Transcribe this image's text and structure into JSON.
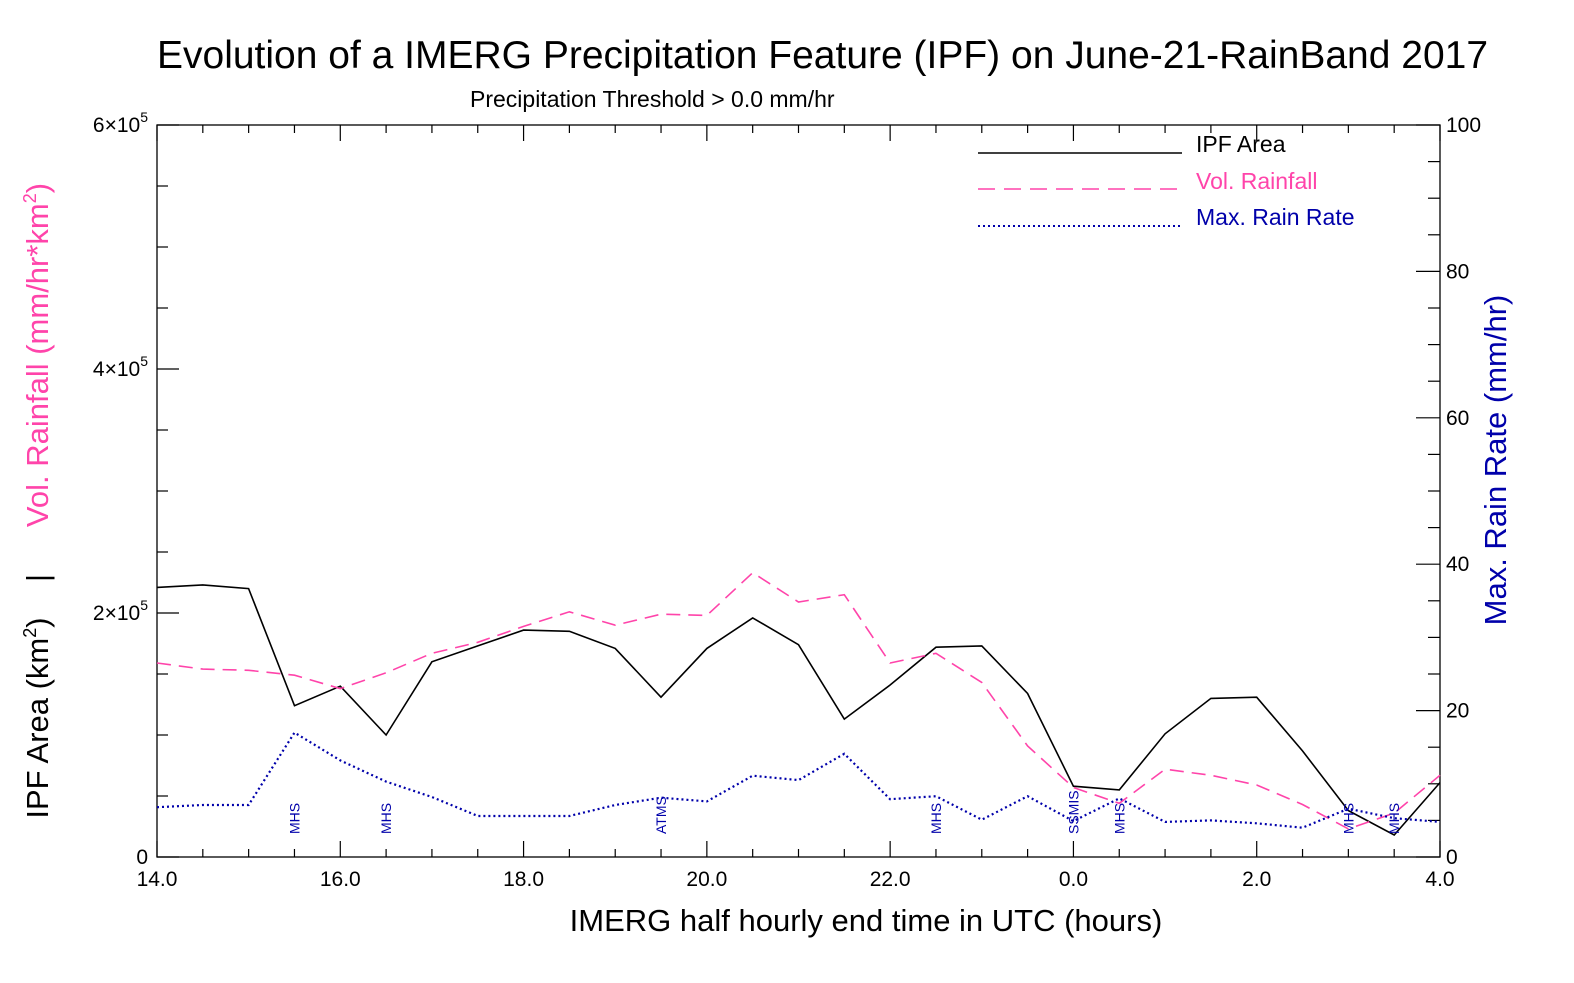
{
  "chart_data": {
    "type": "line",
    "title": "Evolution of a IMERG Precipitation Feature (IPF) on June-21-RainBand 2017",
    "subtitle": "Precipitation Threshold > 0.0 mm/hr",
    "xlabel": "IMERG half hourly end time in UTC (hours)",
    "ylabel_left_top": "Vol. Rainfall (mm/hr*km",
    "ylabel_left_top_sup": "2",
    "ylabel_left_top_close": ")",
    "ylabel_left_sep": "|",
    "ylabel_left_bottom": "IPF Area (km",
    "ylabel_left_bottom_sup": "2",
    "ylabel_left_bottom_close": ")",
    "ylabel_right": "Max. Rain Rate (mm/hr)",
    "x_tick_labels": [
      "14.0",
      "16.0",
      "18.0",
      "20.0",
      "22.0",
      "0.0",
      "2.0",
      "4.0"
    ],
    "x_tick_positions_hours": [
      14,
      16,
      18,
      20,
      22,
      24,
      26,
      28
    ],
    "xlim": [
      14,
      28
    ],
    "ylim_left": [
      0,
      600000
    ],
    "left_tick_values": [
      0,
      200000,
      400000,
      600000
    ],
    "left_tick_labels": [
      "0",
      "2×10",
      "4×10",
      "6×10"
    ],
    "left_tick_exponent": "5",
    "ylim_right": [
      0,
      100
    ],
    "right_tick_values": [
      0,
      20,
      40,
      60,
      80,
      100
    ],
    "right_tick_labels": [
      "0",
      "20",
      "40",
      "60",
      "80",
      "100"
    ],
    "x": [
      14.0,
      14.5,
      15.0,
      15.5,
      16.0,
      16.5,
      17.0,
      17.5,
      18.0,
      18.5,
      19.0,
      19.5,
      20.0,
      20.5,
      21.0,
      21.5,
      22.0,
      22.5,
      23.0,
      23.5,
      24.0,
      24.5,
      25.0,
      25.5,
      26.0,
      26.5,
      27.0,
      27.5,
      28.0
    ],
    "series": [
      {
        "name": "IPF Area",
        "axis": "left",
        "color": "#000000",
        "style": "solid",
        "values": [
          221000,
          223000,
          220000,
          124000,
          140000,
          100000,
          160000,
          173000,
          186000,
          185000,
          171000,
          131000,
          171000,
          196000,
          174000,
          113000,
          141000,
          172000,
          173000,
          134000,
          58000,
          55000,
          101000,
          130000,
          131000,
          87000,
          38000,
          18000,
          61000
        ]
      },
      {
        "name": "Vol. Rainfall",
        "axis": "left",
        "color": "#ff44aa",
        "style": "dashed",
        "values": [
          159000,
          154000,
          153000,
          149000,
          138000,
          151000,
          167000,
          176000,
          189000,
          201000,
          190000,
          199000,
          198000,
          233000,
          209000,
          215000,
          159000,
          167000,
          143000,
          91000,
          57000,
          44000,
          72000,
          67000,
          59000,
          43000,
          23000,
          36000,
          67000
        ]
      },
      {
        "name": "Max. Rain Rate",
        "axis": "right",
        "color": "#0000aa",
        "style": "dotted",
        "values": [
          6.8,
          7.1,
          7.1,
          17.0,
          13.2,
          10.3,
          8.2,
          5.6,
          5.6,
          5.6,
          7.1,
          8.1,
          7.6,
          11.1,
          10.5,
          14.1,
          7.9,
          8.3,
          5.1,
          8.3,
          4.9,
          8.0,
          4.8,
          5.0,
          4.6,
          4.0,
          6.6,
          5.3,
          4.8
        ]
      }
    ],
    "sensor_labels": [
      {
        "x": 15.5,
        "label": "MHS"
      },
      {
        "x": 16.5,
        "label": "MHS"
      },
      {
        "x": 19.5,
        "label": "ATMS"
      },
      {
        "x": 22.5,
        "label": "MHS"
      },
      {
        "x": 24.0,
        "label": "SSMIS"
      },
      {
        "x": 24.5,
        "label": "MHS"
      },
      {
        "x": 27.0,
        "label": "MHS"
      },
      {
        "x": 27.5,
        "label": "MHS"
      }
    ],
    "legend": {
      "placement": "top-right",
      "entries": [
        "IPF Area",
        "Vol. Rainfall",
        "Max. Rain Rate"
      ]
    },
    "colors": {
      "vol_rainfall": "#ff44aa",
      "max_rain_rate": "#0000aa",
      "ipf_area": "#000000"
    },
    "grid": false
  }
}
